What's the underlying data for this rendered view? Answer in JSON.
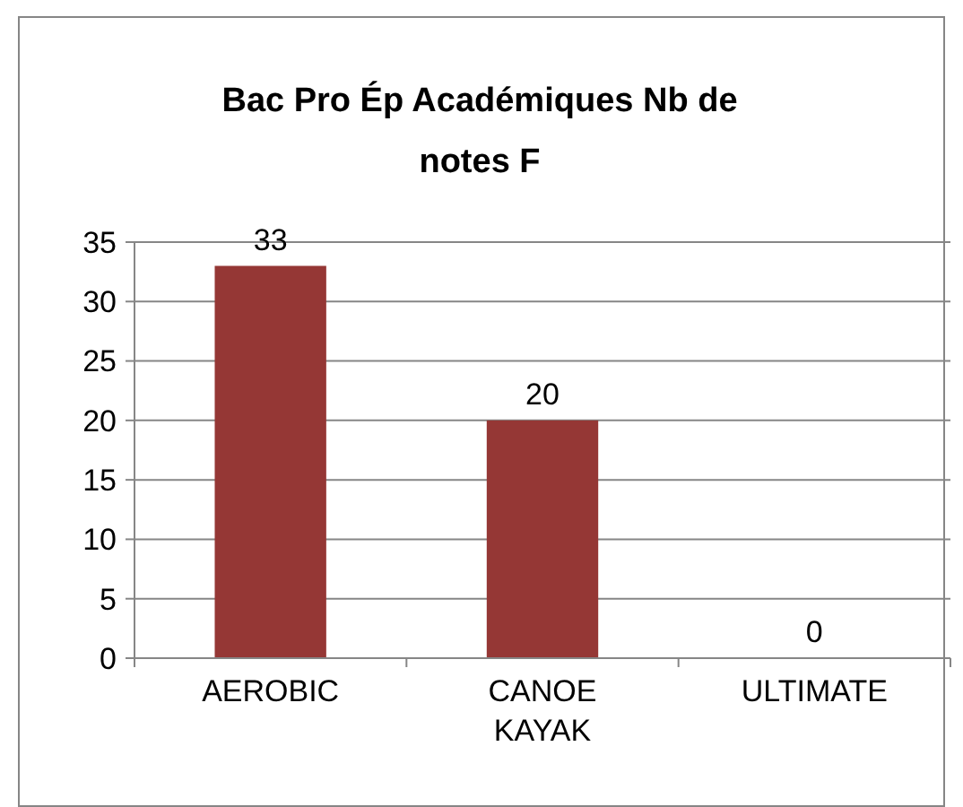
{
  "chart_data": {
    "type": "bar",
    "title": "Bac Pro Ép Académiques Nb de notes F",
    "categories": [
      "AEROBIC",
      "CANOE KAYAK",
      "ULTIMATE"
    ],
    "values": [
      33,
      20,
      0
    ],
    "color": "#953735",
    "ylim": [
      0,
      35
    ],
    "yticks": [
      0,
      5,
      10,
      15,
      20,
      25,
      30,
      35
    ],
    "grid": true,
    "data_labels": true
  }
}
